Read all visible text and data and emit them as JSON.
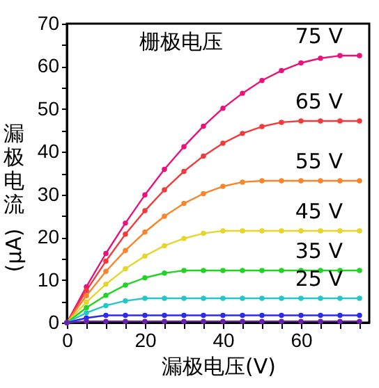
{
  "chart_data": {
    "type": "line",
    "legend_title": "栅极电压",
    "xlabel": "漏极电压(V)",
    "ylabel": "漏极电流(μA)",
    "x": [
      0,
      5,
      10,
      15,
      20,
      25,
      30,
      35,
      40,
      45,
      50,
      55,
      60,
      65,
      70,
      75
    ],
    "series": [
      {
        "name": "75 V",
        "color": "#e8127a",
        "values": [
          0,
          8.4,
          16.2,
          23.3,
          29.9,
          35.9,
          41.2,
          46.0,
          50.2,
          53.7,
          56.7,
          59.0,
          60.8,
          61.9,
          62.5,
          62.5
        ]
      },
      {
        "name": "65 V",
        "color": "#f23a3a",
        "values": [
          0,
          7.5,
          14.4,
          20.7,
          26.2,
          31.1,
          35.4,
          39.0,
          42.0,
          44.3,
          45.9,
          46.9,
          47.2,
          47.2,
          47.2,
          47.2
        ]
      },
      {
        "name": "55 V",
        "color": "#f7852a",
        "values": [
          0,
          6.3,
          12.0,
          16.9,
          21.2,
          24.9,
          27.9,
          30.2,
          31.9,
          32.9,
          33.2,
          33.2,
          33.2,
          33.2,
          33.2,
          33.2
        ]
      },
      {
        "name": "45 V",
        "color": "#e6d52a",
        "values": [
          0,
          4.8,
          9.0,
          12.6,
          15.6,
          18.0,
          19.7,
          20.9,
          21.5,
          21.5,
          21.5,
          21.5,
          21.5,
          21.5,
          21.5,
          21.5
        ]
      },
      {
        "name": "35 V",
        "color": "#22d422",
        "values": [
          0,
          3.5,
          6.4,
          8.8,
          10.5,
          11.6,
          12.2,
          12.2,
          12.2,
          12.2,
          12.2,
          12.2,
          12.2,
          12.2,
          12.2,
          12.2
        ]
      },
      {
        "name": "25 V",
        "color": "#22c8c8",
        "values": [
          0,
          2.3,
          4.0,
          5.1,
          5.7,
          5.7,
          5.7,
          5.7,
          5.7,
          5.7,
          5.7,
          5.7,
          5.7,
          5.7,
          5.7,
          5.7
        ]
      },
      {
        "color": "#2b2bf0",
        "values": [
          0,
          1.1,
          1.7,
          1.7,
          1.7,
          1.7,
          1.7,
          1.7,
          1.7,
          1.7,
          1.7,
          1.7,
          1.7,
          1.7,
          1.7,
          1.7
        ]
      },
      {
        "color": "#6a1fb0",
        "values": [
          0,
          0.3,
          0.3,
          0.3,
          0.3,
          0.3,
          0.3,
          0.3,
          0.3,
          0.3,
          0.3,
          0.3,
          0.3,
          0.3,
          0.3,
          0.3
        ]
      }
    ],
    "xlim": [
      0,
      77.5
    ],
    "xticks": [
      0,
      {
        "value": 5,
        "label": null
      },
      {
        "value": 10,
        "label": null
      },
      {
        "value": 15,
        "label": null
      },
      20,
      {
        "value": 25,
        "label": null
      },
      {
        "value": 30,
        "label": null
      },
      {
        "value": 35,
        "label": null
      },
      40,
      {
        "value": 45,
        "label": null
      },
      {
        "value": 50,
        "label": null
      },
      {
        "value": 55,
        "label": null
      },
      60,
      {
        "value": 65,
        "label": null
      },
      {
        "value": 70,
        "label": null
      },
      {
        "value": 75,
        "label": null
      }
    ],
    "ylim": [
      0,
      70
    ],
    "yticks": [
      0,
      {
        "value": 5,
        "label": null
      },
      10,
      {
        "value": 15,
        "label": null
      },
      20,
      {
        "value": 25,
        "label": null
      },
      30,
      {
        "value": 35,
        "label": null
      },
      40,
      {
        "value": 45,
        "label": null
      },
      50,
      {
        "value": 55,
        "label": null
      },
      60,
      {
        "value": 65,
        "label": null
      },
      70
    ],
    "grid": false,
    "marker": "circle",
    "line_style": "solid"
  }
}
